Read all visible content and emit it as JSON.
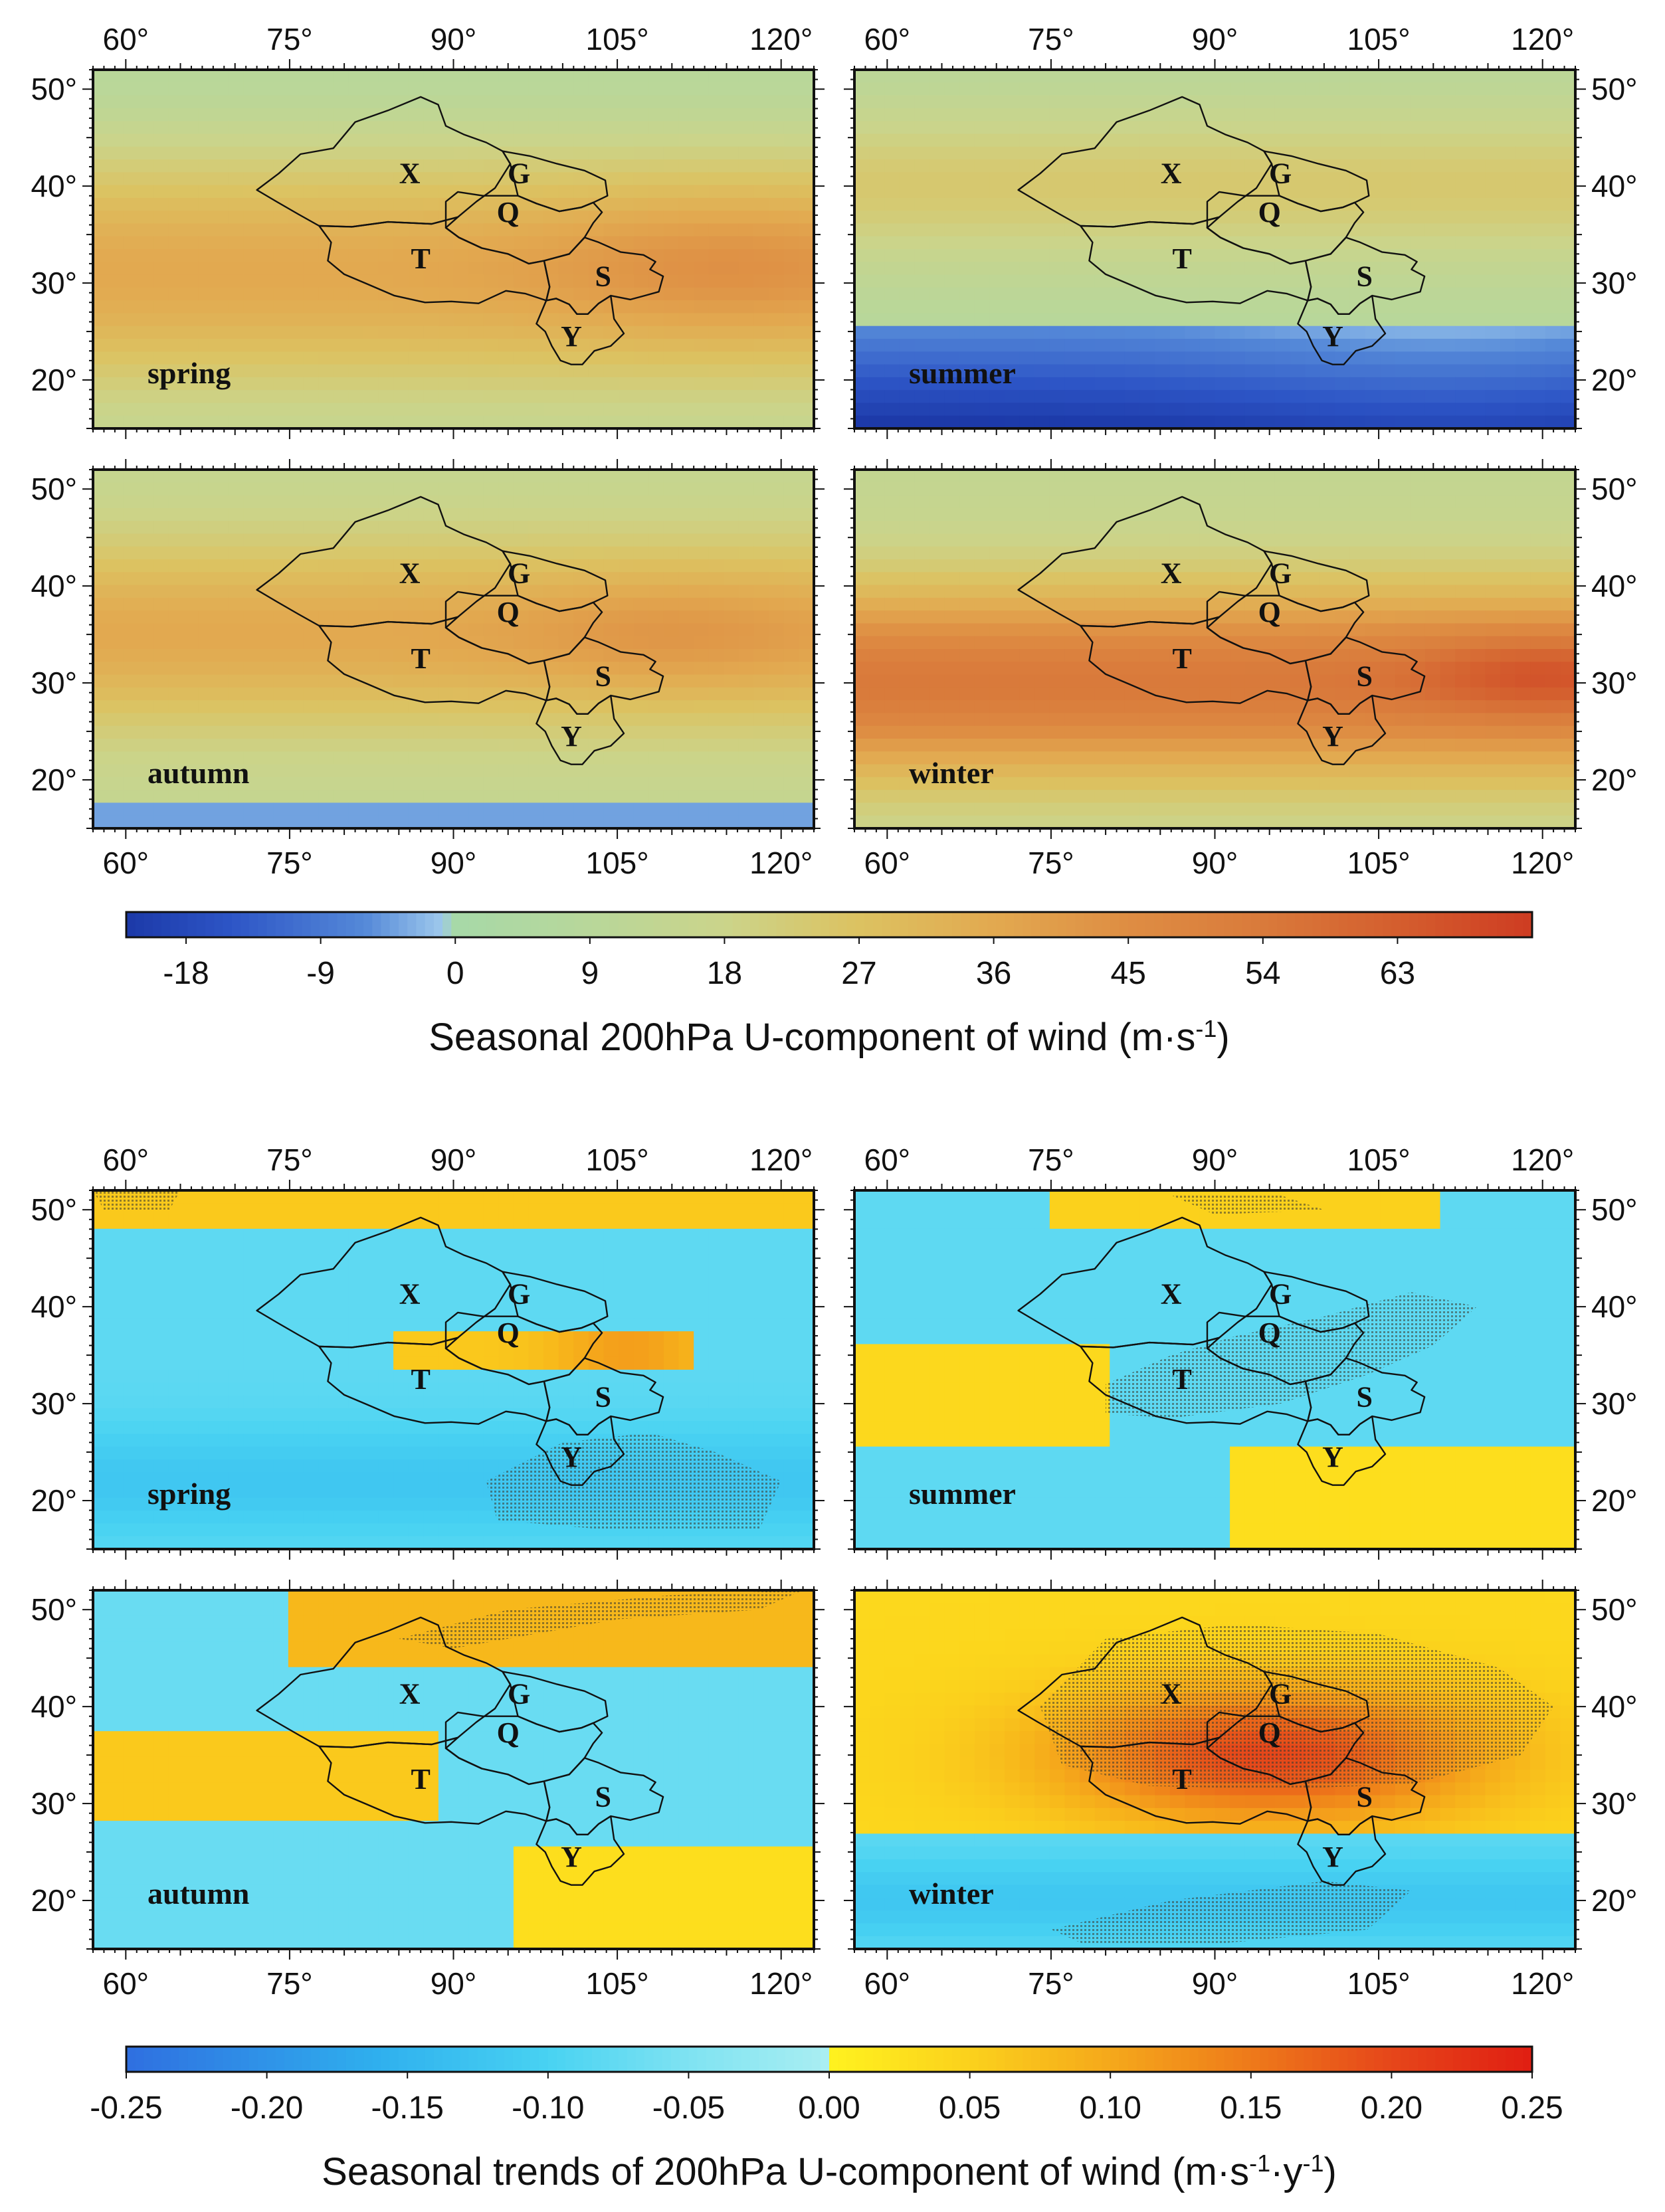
{
  "chart_data": [
    {
      "type": "heatmap",
      "title": "Seasonal 200hPa U-component of wind",
      "colorbar_label": "Seasonal 200hPa U-component of wind (m·s",
      "colorbar_label_sup": "-1",
      "colorbar_label_end": ")",
      "colorbar_ticks": [
        "-18",
        "-9",
        "0",
        "9",
        "18",
        "27",
        "36",
        "45",
        "54",
        "63"
      ],
      "colorbar_range": [
        -22,
        72
      ],
      "colormap": [
        "#1f3fae",
        "#4a78d2",
        "#9ac8ee",
        "#a9d8a8",
        "#c9d58a",
        "#e2c054",
        "#e3a14a",
        "#dd7e3c",
        "#d54a2a"
      ],
      "x_ticks": [
        "60°",
        "75°",
        "90°",
        "105°",
        "120°"
      ],
      "y_ticks": [
        "50°",
        "40°",
        "30°",
        "20°"
      ],
      "panels": [
        {
          "season": "spring",
          "regions": [
            "X",
            "G",
            "Q",
            "T",
            "S",
            "Y"
          ]
        },
        {
          "season": "summer",
          "regions": [
            "X",
            "G",
            "Q",
            "T",
            "S",
            "Y"
          ]
        },
        {
          "season": "autumn",
          "regions": [
            "X",
            "G",
            "Q",
            "T",
            "S",
            "Y"
          ]
        },
        {
          "season": "winter",
          "regions": [
            "X",
            "G",
            "Q",
            "T",
            "S",
            "Y"
          ]
        }
      ]
    },
    {
      "type": "heatmap",
      "title": "Seasonal trends of 200hPa U-component of wind",
      "colorbar_label": "Seasonal trends of 200hPa U-component of wind (m·s",
      "colorbar_label_sup": "-1",
      "colorbar_label_mid": "·y",
      "colorbar_label_sup2": "-1",
      "colorbar_label_end": ")",
      "colorbar_ticks": [
        "-0.25",
        "-0.20",
        "-0.15",
        "-0.10",
        "-0.05",
        "0.00",
        "0.05",
        "0.10",
        "0.15",
        "0.20",
        "0.25"
      ],
      "colorbar_range": [
        -0.25,
        0.25
      ],
      "colormap": [
        "#2f6fe0",
        "#2fa8ee",
        "#3fd0f0",
        "#8fe8f0",
        "#ffe020",
        "#f7c21a",
        "#f09a1a",
        "#e8501a",
        "#e01e12"
      ],
      "x_ticks": [
        "60°",
        "75°",
        "90°",
        "105°",
        "120°"
      ],
      "y_ticks": [
        "50°",
        "40°",
        "30°",
        "20°"
      ],
      "panels": [
        {
          "season": "spring",
          "regions": [
            "X",
            "G",
            "Q",
            "T",
            "S",
            "Y"
          ]
        },
        {
          "season": "summer",
          "regions": [
            "X",
            "G",
            "Q",
            "T",
            "S",
            "Y"
          ]
        },
        {
          "season": "autumn",
          "regions": [
            "X",
            "G",
            "Q",
            "T",
            "S",
            "Y"
          ]
        },
        {
          "season": "winter",
          "regions": [
            "X",
            "G",
            "Q",
            "T",
            "S",
            "Y"
          ]
        }
      ]
    }
  ]
}
